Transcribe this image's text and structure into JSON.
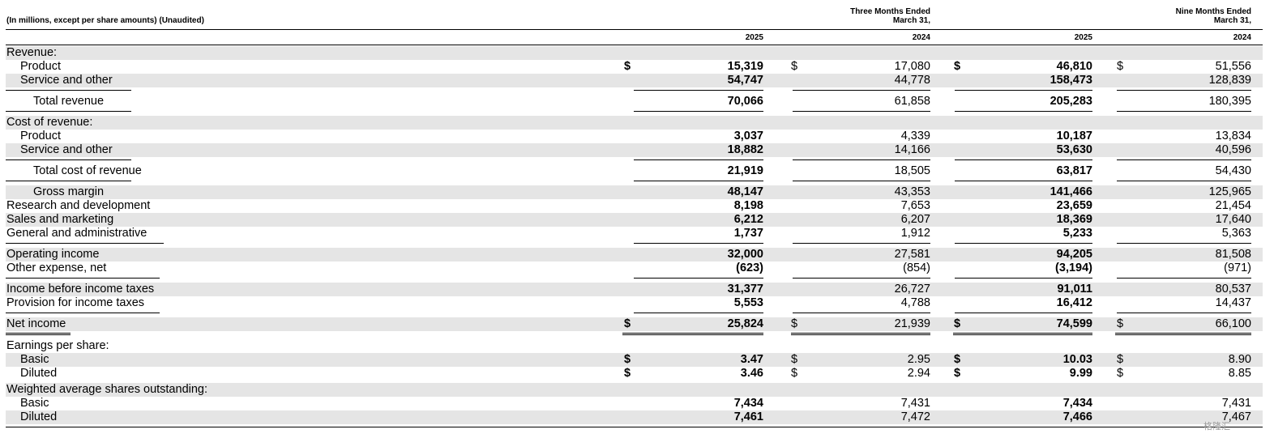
{
  "header": {
    "units_note": "(In millions, except per share amounts) (Unaudited)",
    "group_three_line1": "Three Months Ended",
    "group_three_line2": "March 31,",
    "group_nine_line1": "Nine Months Ended",
    "group_nine_line2": "March 31,",
    "col_years": [
      "2025",
      "2024",
      "2025",
      "2024"
    ]
  },
  "rows": [
    {
      "label": "Revenue:",
      "values": [
        "",
        "",
        "",
        ""
      ]
    },
    {
      "label": "Product",
      "dollar": [
        "$",
        "$",
        "$",
        "$"
      ],
      "values": [
        "15,319",
        "17,080",
        "46,810",
        "51,556"
      ]
    },
    {
      "label": "Service and other",
      "values": [
        "54,747",
        "44,778",
        "158,473",
        "128,839"
      ]
    },
    {
      "label": "Total revenue",
      "values": [
        "70,066",
        "61,858",
        "205,283",
        "180,395"
      ]
    },
    {
      "label": "Cost of revenue:",
      "values": [
        "",
        "",
        "",
        ""
      ]
    },
    {
      "label": "Product",
      "values": [
        "3,037",
        "4,339",
        "10,187",
        "13,834"
      ]
    },
    {
      "label": "Service and other",
      "values": [
        "18,882",
        "14,166",
        "53,630",
        "40,596"
      ]
    },
    {
      "label": "Total cost of revenue",
      "values": [
        "21,919",
        "18,505",
        "63,817",
        "54,430"
      ]
    },
    {
      "label": "Gross margin",
      "values": [
        "48,147",
        "43,353",
        "141,466",
        "125,965"
      ]
    },
    {
      "label": "Research and development",
      "values": [
        "8,198",
        "7,653",
        "23,659",
        "21,454"
      ]
    },
    {
      "label": "Sales and marketing",
      "values": [
        "6,212",
        "6,207",
        "18,369",
        "17,640"
      ]
    },
    {
      "label": "General and administrative",
      "values": [
        "1,737",
        "1,912",
        "5,233",
        "5,363"
      ]
    },
    {
      "label": "Operating income",
      "values": [
        "32,000",
        "27,581",
        "94,205",
        "81,508"
      ]
    },
    {
      "label": "Other expense, net",
      "values": [
        "(623)",
        "(854)",
        "(3,194)",
        "(971)"
      ]
    },
    {
      "label": "Income before income taxes",
      "values": [
        "31,377",
        "26,727",
        "91,011",
        "80,537"
      ]
    },
    {
      "label": "Provision for income taxes",
      "values": [
        "5,553",
        "4,788",
        "16,412",
        "14,437"
      ]
    },
    {
      "label": "Net income",
      "dollar": [
        "$",
        "$",
        "$",
        "$"
      ],
      "values": [
        "25,824",
        "21,939",
        "74,599",
        "66,100"
      ]
    },
    {
      "label": "Earnings per share:",
      "values": [
        "",
        "",
        "",
        ""
      ]
    },
    {
      "label": "Basic",
      "dollar": [
        "$",
        "$",
        "$",
        "$"
      ],
      "values": [
        "3.47",
        "2.95",
        "10.03",
        "8.90"
      ]
    },
    {
      "label": "Diluted",
      "dollar": [
        "$",
        "$",
        "$",
        "$"
      ],
      "values": [
        "3.46",
        "2.94",
        "9.99",
        "8.85"
      ]
    },
    {
      "label": "Weighted average shares outstanding:",
      "values": [
        "",
        "",
        "",
        ""
      ]
    },
    {
      "label": "Basic",
      "values": [
        "7,434",
        "7,431",
        "7,434",
        "7,431"
      ]
    },
    {
      "label": "Diluted",
      "values": [
        "7,461",
        "7,472",
        "7,466",
        "7,467"
      ]
    }
  ],
  "watermark": "格隆汇"
}
